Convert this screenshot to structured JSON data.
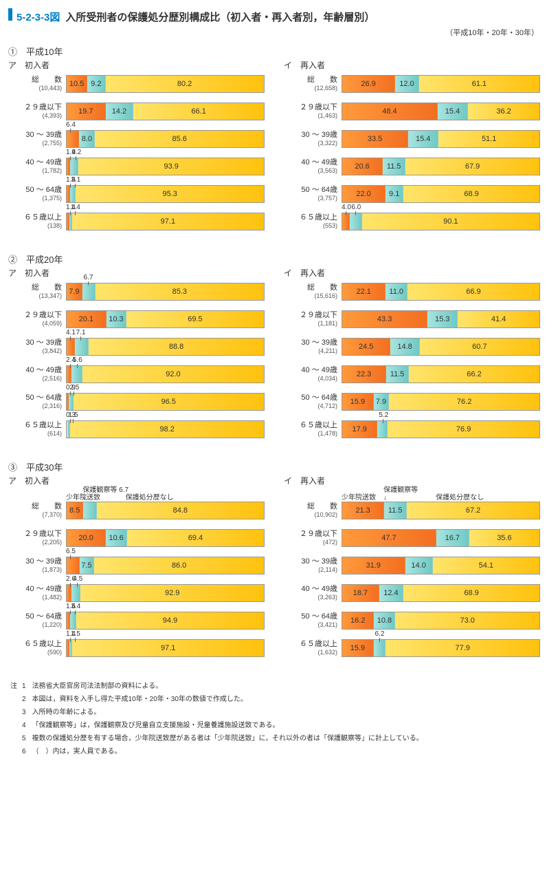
{
  "figure_number": "5-2-3-3図",
  "figure_title": "入所受刑者の保護処分歴別構成比（初入者・再入者別，年齢層別）",
  "years_note": "（平成10年・20年・30年）",
  "colors": {
    "seg1_grad_from": "#ff9a3c",
    "seg1_grad_to": "#f36f21",
    "seg2_grad_from": "#a8e4e0",
    "seg2_grad_to": "#6fc9c3",
    "seg3_grad_from": "#ffe46b",
    "seg3_grad_to": "#ffc20e",
    "text": "#333333"
  },
  "section_headers": {
    "s1": "①　平成10年",
    "s2": "②　平成20年",
    "s3": "③　平成30年",
    "a": "ア　初入者",
    "i": "イ　再入者"
  },
  "legend": {
    "seg1": "少年院送致",
    "seg2": "保護観察等",
    "seg3": "保護処分歴なし",
    "seg2_val_h30a": "6.7"
  },
  "row_labels": [
    "総　　数",
    "２９歳以下",
    "30 ～ 39歳",
    "40 ～ 49歳",
    "50 ～ 64歳",
    "６５歳以上"
  ],
  "panels": [
    {
      "id": "h10a",
      "counts": [
        "10,443",
        "4,393",
        "2,755",
        "1,782",
        "1,375",
        "138"
      ],
      "rows": [
        {
          "v": [
            10.5,
            9.2,
            80.2
          ],
          "show": [
            1,
            1,
            1
          ]
        },
        {
          "v": [
            19.7,
            14.2,
            66.1
          ],
          "show": [
            1,
            1,
            1
          ]
        },
        {
          "v": [
            6.4,
            8.0,
            85.6
          ],
          "call": [
            0
          ],
          "show": [
            0,
            1,
            1
          ],
          "fmt": [
            "6.4",
            "8.0",
            "85.6"
          ]
        },
        {
          "v": [
            1.9,
            4.2,
            93.9
          ],
          "call": [
            0,
            1
          ],
          "show": [
            0,
            0,
            1
          ]
        },
        {
          "v": [
            1.6,
            3.1,
            95.3
          ],
          "call": [
            0,
            1
          ],
          "show": [
            0,
            0,
            1
          ]
        },
        {
          "v": [
            1.4,
            1.4,
            97.1
          ],
          "call": [
            0,
            1
          ],
          "show": [
            0,
            0,
            1
          ]
        }
      ]
    },
    {
      "id": "h10i",
      "counts": [
        "12,658",
        "1,463",
        "3,322",
        "3,563",
        "3,757",
        "553"
      ],
      "rows": [
        {
          "v": [
            26.9,
            12.0,
            61.1
          ],
          "show": [
            1,
            1,
            1
          ],
          "fmt": [
            "26.9",
            "12.0",
            "61.1"
          ]
        },
        {
          "v": [
            48.4,
            15.4,
            36.2
          ],
          "show": [
            1,
            1,
            1
          ]
        },
        {
          "v": [
            33.5,
            15.4,
            51.1
          ],
          "show": [
            1,
            1,
            1
          ]
        },
        {
          "v": [
            20.6,
            11.5,
            67.9
          ],
          "show": [
            1,
            1,
            1
          ]
        },
        {
          "v": [
            22.0,
            9.1,
            68.9
          ],
          "show": [
            1,
            1,
            1
          ],
          "fmt": [
            "22.0",
            "9.1",
            "68.9"
          ]
        },
        {
          "v": [
            4.0,
            6.0,
            90.1
          ],
          "call": [
            0,
            1
          ],
          "show": [
            0,
            0,
            1
          ],
          "fmt": [
            "4.0",
            "6.0",
            "90.1"
          ]
        }
      ]
    },
    {
      "id": "h20a",
      "counts": [
        "13,347",
        "4,059",
        "3,842",
        "2,516",
        "2,316",
        "614"
      ],
      "rows": [
        {
          "v": [
            7.9,
            6.7,
            85.3
          ],
          "call": [
            1
          ],
          "show": [
            1,
            0,
            1
          ]
        },
        {
          "v": [
            20.1,
            10.3,
            69.5
          ],
          "show": [
            1,
            1,
            1
          ]
        },
        {
          "v": [
            4.1,
            7.1,
            88.8
          ],
          "call": [
            0,
            1
          ],
          "show": [
            0,
            0,
            1
          ]
        },
        {
          "v": [
            2.4,
            5.6,
            92.0
          ],
          "call": [
            0,
            1
          ],
          "show": [
            0,
            0,
            1
          ],
          "fmt": [
            "2.4",
            "5.6",
            "92.0"
          ]
        },
        {
          "v": [
            0.9,
            2.5,
            96.5
          ],
          "call": [
            0,
            1
          ],
          "show": [
            0,
            0,
            1
          ]
        },
        {
          "v": [
            0.3,
            1.5,
            98.2
          ],
          "call": [
            0,
            1
          ],
          "show": [
            0,
            0,
            1
          ]
        }
      ]
    },
    {
      "id": "h20i",
      "counts": [
        "15,616",
        "1,181",
        "4,211",
        "4,034",
        "4,712",
        "1,478"
      ],
      "rows": [
        {
          "v": [
            22.1,
            11.0,
            66.9
          ],
          "show": [
            1,
            1,
            1
          ],
          "fmt": [
            "22.1",
            "11.0",
            "66.9"
          ]
        },
        {
          "v": [
            43.3,
            15.3,
            41.4
          ],
          "show": [
            1,
            1,
            1
          ]
        },
        {
          "v": [
            24.5,
            14.8,
            60.7
          ],
          "show": [
            1,
            1,
            1
          ]
        },
        {
          "v": [
            22.3,
            11.5,
            66.2
          ],
          "show": [
            1,
            1,
            1
          ]
        },
        {
          "v": [
            15.9,
            7.9,
            76.2
          ],
          "show": [
            1,
            1,
            1
          ]
        },
        {
          "v": [
            17.9,
            5.2,
            76.9
          ],
          "call": [
            1
          ],
          "show": [
            1,
            0,
            1
          ]
        }
      ]
    },
    {
      "id": "h30a",
      "counts": [
        "7,370",
        "2,205",
        "1,873",
        "1,482",
        "1,220",
        "590"
      ],
      "legend": true,
      "rows": [
        {
          "v": [
            8.5,
            6.7,
            84.8
          ],
          "show": [
            1,
            0,
            1
          ]
        },
        {
          "v": [
            20.0,
            10.6,
            69.4
          ],
          "show": [
            1,
            1,
            1
          ],
          "fmt": [
            "20.0",
            "10.6",
            "69.4"
          ]
        },
        {
          "v": [
            6.5,
            7.5,
            86.0
          ],
          "call": [
            0
          ],
          "show": [
            0,
            1,
            1
          ],
          "fmt": [
            "6.5",
            "7.5",
            "86.0"
          ]
        },
        {
          "v": [
            2.6,
            4.5,
            92.9
          ],
          "call": [
            0,
            1
          ],
          "show": [
            0,
            0,
            1
          ]
        },
        {
          "v": [
            1.6,
            3.4,
            94.9
          ],
          "call": [
            0,
            1
          ],
          "show": [
            0,
            0,
            1
          ]
        },
        {
          "v": [
            1.4,
            1.5,
            97.1
          ],
          "call": [
            0,
            1
          ],
          "show": [
            0,
            0,
            1
          ]
        }
      ]
    },
    {
      "id": "h30i",
      "counts": [
        "10,902",
        "472",
        "2,114",
        "3,263",
        "3,421",
        "1,632"
      ],
      "legend": true,
      "rows": [
        {
          "v": [
            21.3,
            11.5,
            67.2
          ],
          "show": [
            1,
            1,
            1
          ]
        },
        {
          "v": [
            47.7,
            16.7,
            35.6
          ],
          "show": [
            1,
            1,
            1
          ]
        },
        {
          "v": [
            31.9,
            14.0,
            54.1
          ],
          "show": [
            1,
            1,
            1
          ],
          "fmt": [
            "31.9",
            "14.0",
            "54.1"
          ]
        },
        {
          "v": [
            18.7,
            12.4,
            68.9
          ],
          "show": [
            1,
            1,
            1
          ]
        },
        {
          "v": [
            16.2,
            10.8,
            73.0
          ],
          "show": [
            1,
            1,
            1
          ],
          "fmt": [
            "16.2",
            "10.8",
            "73.0"
          ]
        },
        {
          "v": [
            15.9,
            6.2,
            77.9
          ],
          "call": [
            1
          ],
          "show": [
            1,
            0,
            1
          ]
        }
      ]
    }
  ],
  "notes_label": "注",
  "notes": [
    "法務省大臣官房司法法制部の資料による。",
    "本図は，資料を入手し得た平成10年・20年・30年の数値で作成した。",
    "入所時の年齢による。",
    "「保護観察等」は，保護観察及び児童自立支援施設・児童養護施設送致である。",
    "複数の保護処分歴を有する場合，少年院送致歴がある者は「少年院送致」に，それ以外の者は「保護観察等」に計上している。",
    "（　）内は，実人員である。"
  ]
}
